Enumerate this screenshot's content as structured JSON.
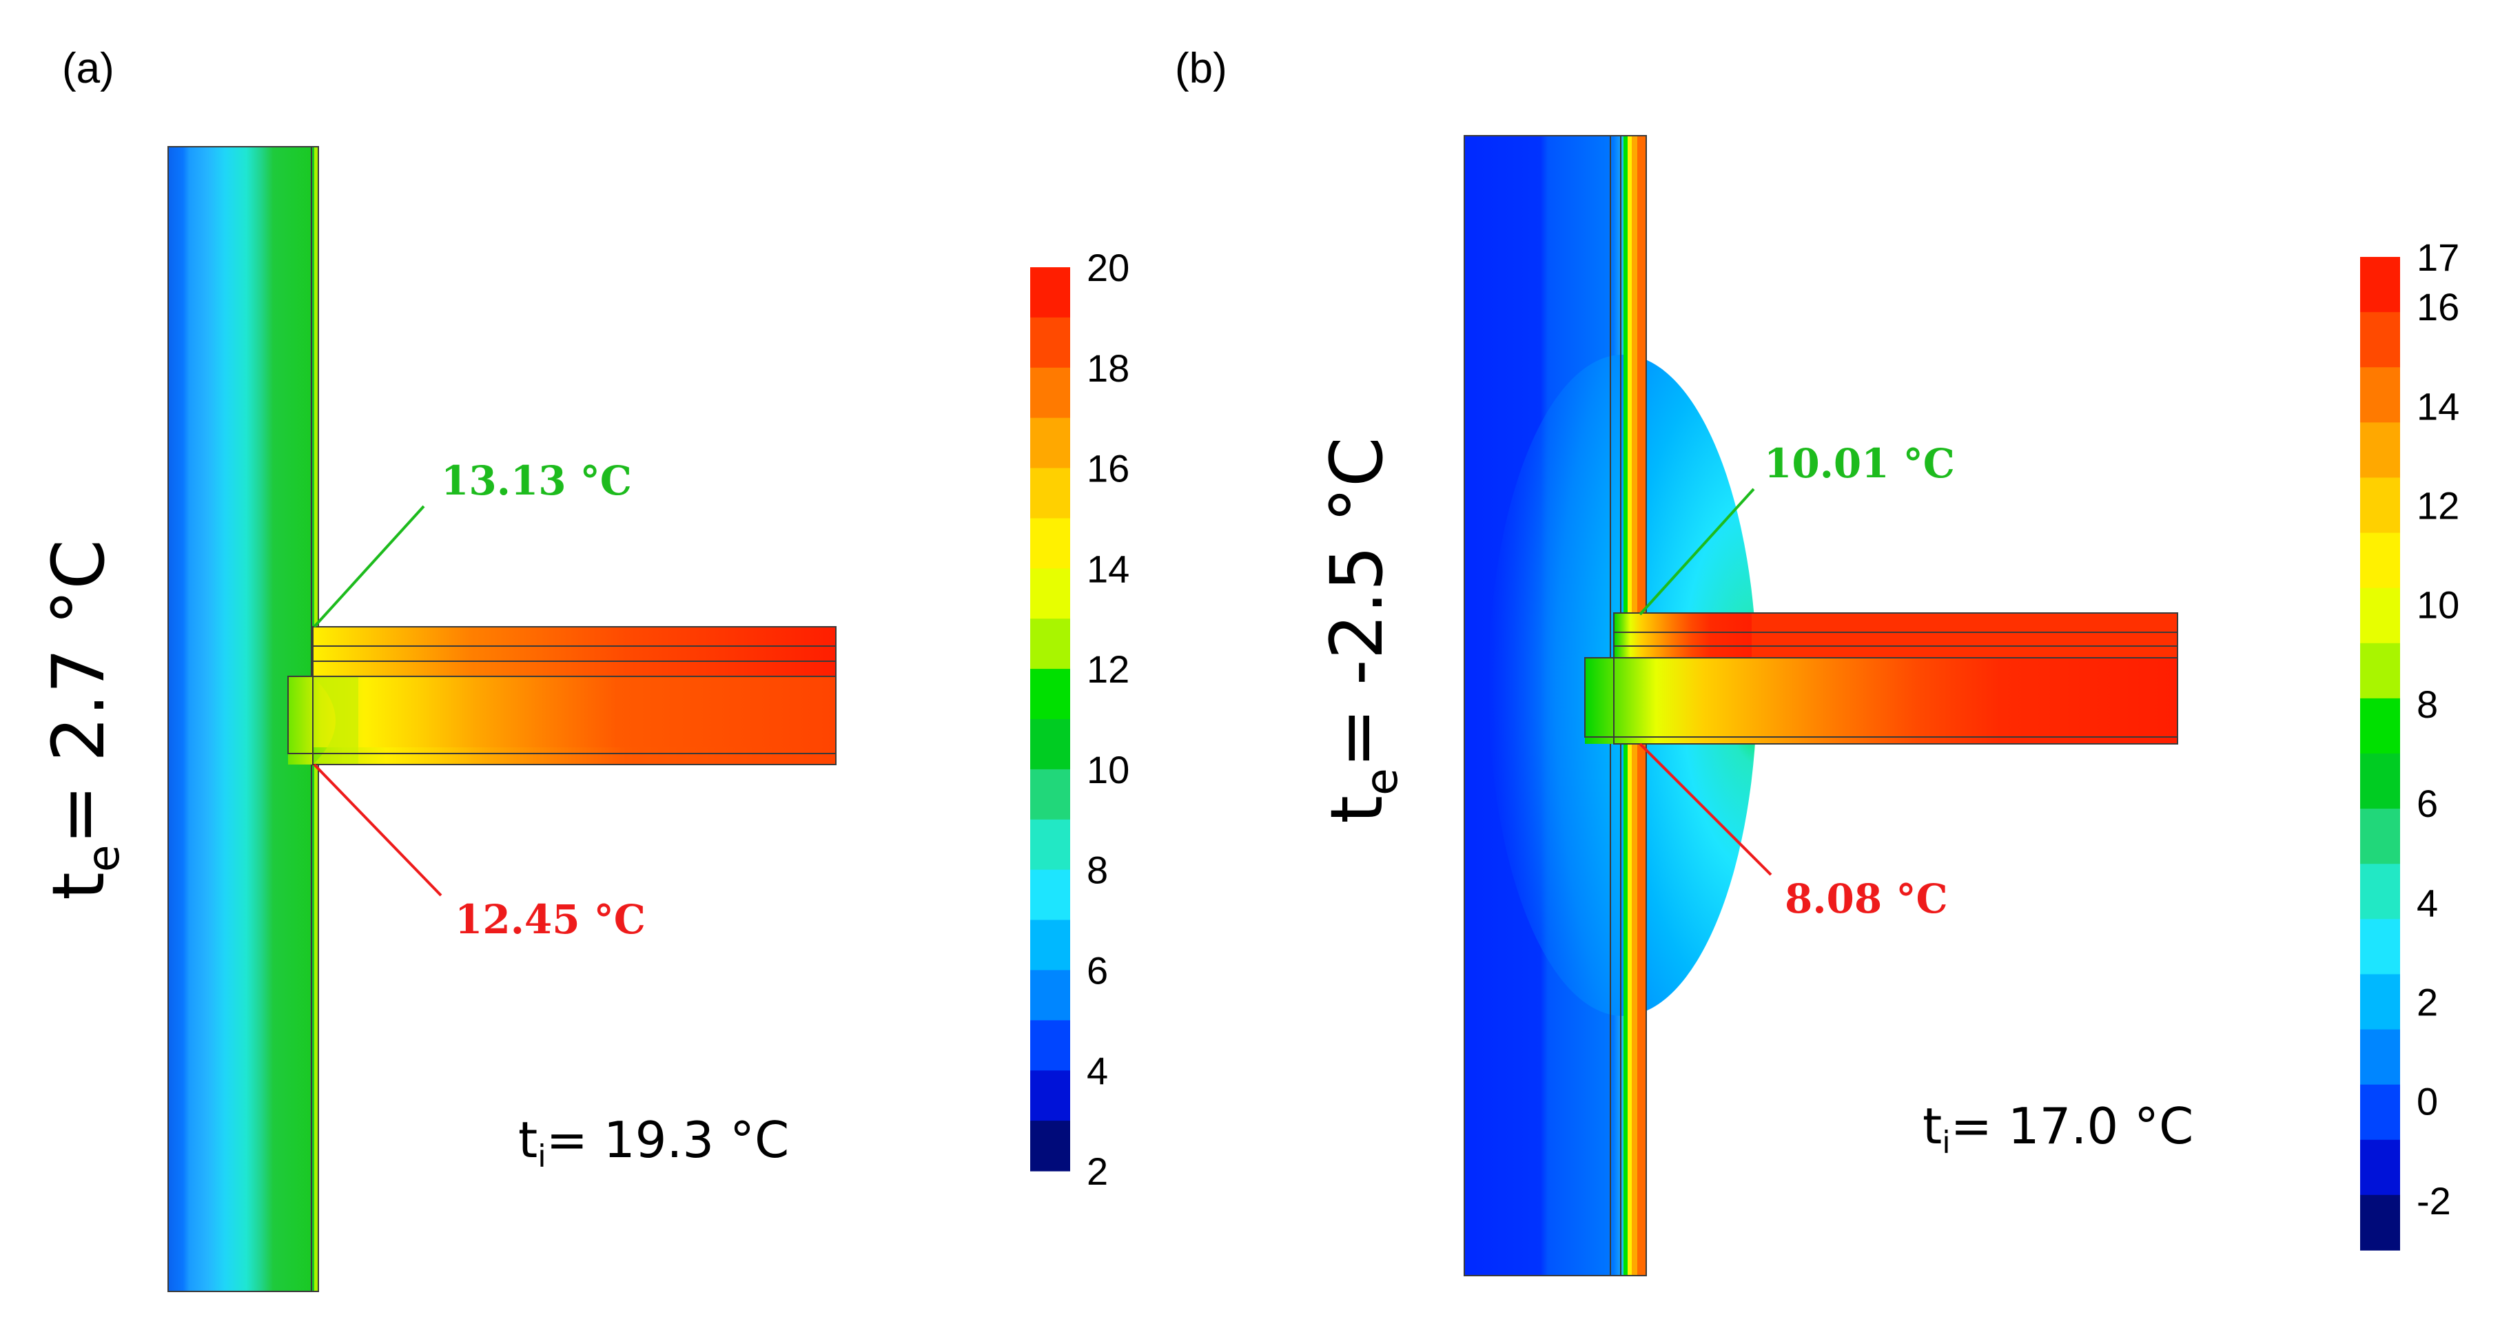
{
  "panels": [
    {
      "label": "(a)",
      "exterior": {
        "symbol": "t",
        "subscript": "e",
        "value": "= 2.7 °C"
      },
      "interior": {
        "symbol": "t",
        "subscript": "i",
        "value": "= 19.3 °C"
      },
      "annotations": {
        "upper": {
          "text": "13.13 °C",
          "color": "#1dbb1d"
        },
        "lower": {
          "text": "12.45 °C",
          "color": "#ee1b1b"
        }
      },
      "colorbar": {
        "ticks": [
          "20",
          "18",
          "16",
          "14",
          "12",
          "10",
          "8",
          "6",
          "4",
          "2"
        ],
        "min": 2,
        "max": 20,
        "colors": [
          "#ff1e00",
          "#ff4a00",
          "#ff7a00",
          "#ffa800",
          "#ffd000",
          "#fff100",
          "#e7ff00",
          "#a9f500",
          "#00e000",
          "#00cc22",
          "#21d77a",
          "#22e8c5",
          "#1de5ff",
          "#00b8ff",
          "#0086ff",
          "#0045ff",
          "#0012d8",
          "#000a7a"
        ]
      }
    },
    {
      "label": "(b)",
      "exterior": {
        "symbol": "t",
        "subscript": "e",
        "value": "= -2.5 °C"
      },
      "interior": {
        "symbol": "t",
        "subscript": "i",
        "value": "= 17.0 °C"
      },
      "annotations": {
        "upper": {
          "text": "10.01 °C",
          "color": "#1dbb1d"
        },
        "lower": {
          "text": "8.08 °C",
          "color": "#ee1b1b"
        }
      },
      "colorbar": {
        "ticks": [
          "17",
          "16",
          "14",
          "12",
          "10",
          "8",
          "6",
          "4",
          "2",
          "0",
          "-2"
        ],
        "min": -3,
        "max": 17,
        "colors": [
          "#ff1e00",
          "#ff4a00",
          "#ff7a00",
          "#ffa800",
          "#ffd000",
          "#fff100",
          "#e7ff00",
          "#a9f500",
          "#00e000",
          "#00cc22",
          "#21d77a",
          "#22e8c5",
          "#1de5ff",
          "#00b8ff",
          "#0086ff",
          "#0045ff",
          "#0012d8",
          "#000a7a"
        ]
      }
    }
  ]
}
